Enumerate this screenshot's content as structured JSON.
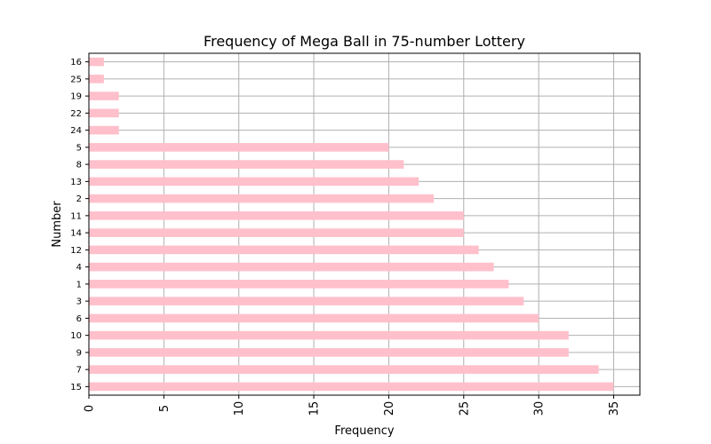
{
  "chart_data": {
    "type": "bar",
    "orientation": "horizontal",
    "title": "Frequency of Mega Ball in 75-number Lottery",
    "xlabel": "Frequency",
    "ylabel": "Number",
    "xlim": [
      0,
      36.75
    ],
    "xticks": [
      0,
      5,
      10,
      15,
      20,
      25,
      30,
      35
    ],
    "grid": true,
    "bar_color": "#FFC0CB",
    "categories": [
      "15",
      "7",
      "9",
      "10",
      "6",
      "3",
      "1",
      "4",
      "12",
      "14",
      "11",
      "2",
      "13",
      "8",
      "5",
      "24",
      "22",
      "19",
      "25",
      "16"
    ],
    "values": [
      35,
      34,
      32,
      32,
      30,
      29,
      28,
      27,
      26,
      25,
      25,
      23,
      22,
      21,
      20,
      2,
      2,
      2,
      1,
      1
    ]
  }
}
